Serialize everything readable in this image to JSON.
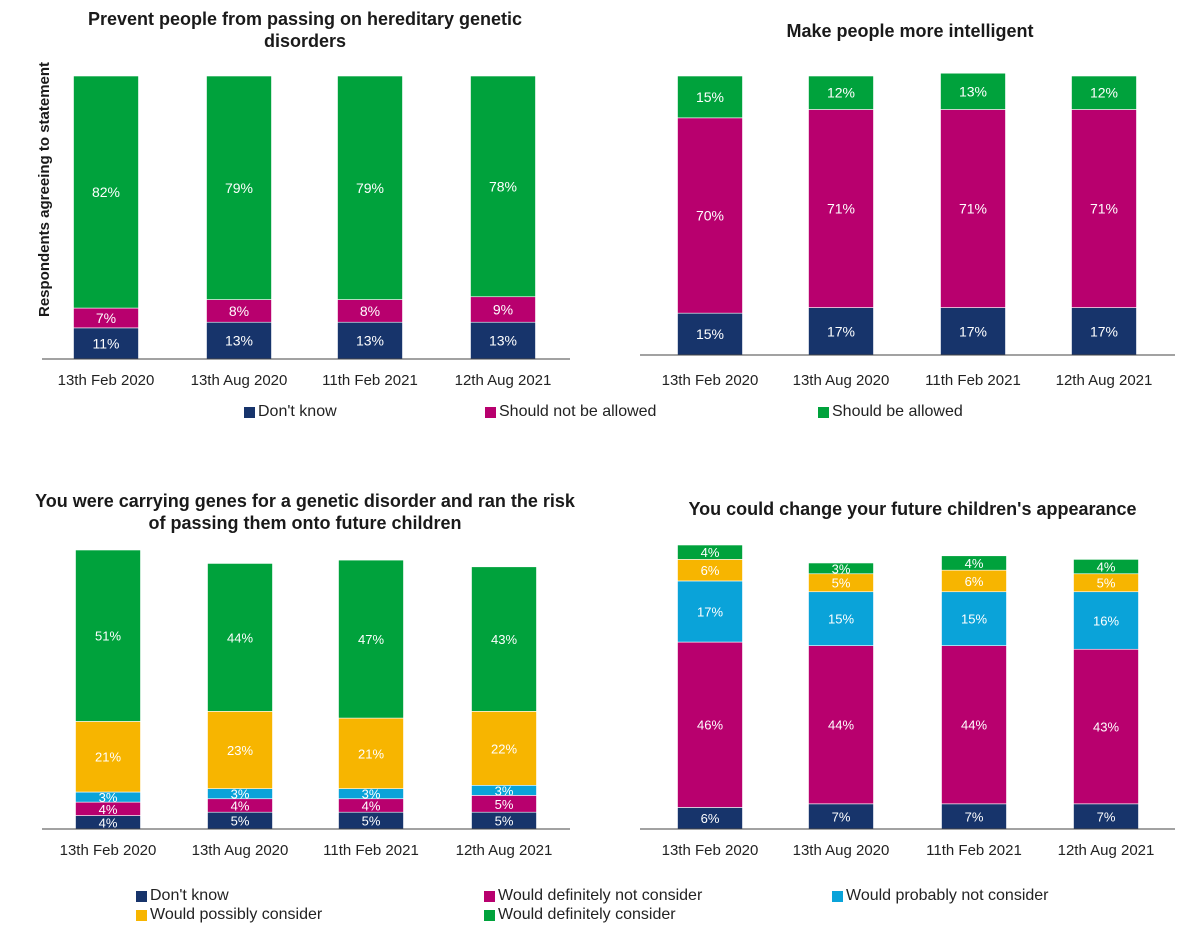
{
  "chart_data": [
    {
      "type": "bar",
      "stacked": true,
      "title": "Prevent people from passing on hereditary genetic disorders",
      "ylabel": "Respondents agreeing to statement",
      "categories": [
        "13th Feb 2020",
        "13th Aug 2020",
        "11th Feb 2021",
        "12th Aug 2021"
      ],
      "series": [
        {
          "name": "Don't know",
          "color": "#17346b",
          "values": [
            11,
            13,
            13,
            13
          ],
          "labels": [
            "11%",
            "13%",
            "13%",
            "13%"
          ]
        },
        {
          "name": "Should not be allowed",
          "color": "#b8006e",
          "values": [
            7,
            8,
            8,
            9
          ],
          "labels": [
            "7%",
            "8%",
            "8%",
            "9%"
          ]
        },
        {
          "name": "Should be allowed",
          "color": "#00a23c",
          "values": [
            82,
            79,
            79,
            78
          ],
          "labels": [
            "82%",
            "79%",
            "79%",
            "78%"
          ]
        }
      ],
      "ylim": [
        0,
        100
      ]
    },
    {
      "type": "bar",
      "stacked": true,
      "title": "Make people more intelligent",
      "categories": [
        "13th Feb 2020",
        "13th Aug 2020",
        "11th Feb 2021",
        "12th Aug 2021"
      ],
      "series": [
        {
          "name": "Don't know",
          "color": "#17346b",
          "values": [
            15,
            17,
            17,
            17
          ],
          "labels": [
            "15%",
            "17%",
            "17%",
            "17%"
          ]
        },
        {
          "name": "Should not be allowed",
          "color": "#b8006e",
          "values": [
            70,
            71,
            71,
            71
          ],
          "labels": [
            "70%",
            "71%",
            "71%",
            "71%"
          ]
        },
        {
          "name": "Should be allowed",
          "color": "#00a23c",
          "values": [
            15,
            12,
            13,
            12
          ],
          "labels": [
            "15%",
            "12%",
            "13%",
            "12%"
          ]
        }
      ],
      "ylim": [
        0,
        100
      ]
    },
    {
      "type": "bar",
      "stacked": true,
      "title": "You were carrying genes for a genetic disorder and ran the risk of passing them onto future children",
      "categories": [
        "13th Feb 2020",
        "13th Aug 2020",
        "11th Feb 2021",
        "12th Aug 2021"
      ],
      "series": [
        {
          "name": "Don't know",
          "color": "#17346b",
          "values": [
            4,
            5,
            5,
            5
          ],
          "labels": [
            "4%",
            "5%",
            "5%",
            "5%"
          ]
        },
        {
          "name": "Would definitely not consider",
          "color": "#b8006e",
          "values": [
            4,
            4,
            4,
            5
          ],
          "labels": [
            "4%",
            "4%",
            "4%",
            "5%"
          ]
        },
        {
          "name": "Would probably not consider",
          "color": "#0aa3d9",
          "values": [
            3,
            3,
            3,
            3
          ],
          "labels": [
            "3%",
            "3%",
            "3%",
            "3%"
          ]
        },
        {
          "name": "Would possibly consider",
          "color": "#f7b500",
          "values": [
            21,
            23,
            21,
            22
          ],
          "labels": [
            "21%",
            "23%",
            "21%",
            "22%"
          ]
        },
        {
          "name": "Would definitely consider",
          "color": "#00a23c",
          "values": [
            51,
            44,
            47,
            43
          ],
          "labels": [
            "51%",
            "44%",
            "47%",
            "43%"
          ]
        }
      ],
      "ylim": [
        0,
        83
      ]
    },
    {
      "type": "bar",
      "stacked": true,
      "title": "You could change your future children's appearance",
      "categories": [
        "13th Feb 2020",
        "13th Aug 2020",
        "11th Feb 2021",
        "12th Aug 2021"
      ],
      "series": [
        {
          "name": "Don't know",
          "color": "#17346b",
          "values": [
            6,
            7,
            7,
            7
          ],
          "labels": [
            "6%",
            "7%",
            "7%",
            "7%"
          ]
        },
        {
          "name": "Would definitely not consider",
          "color": "#b8006e",
          "values": [
            46,
            44,
            44,
            43
          ],
          "labels": [
            "46%",
            "44%",
            "44%",
            "43%"
          ]
        },
        {
          "name": "Would probably not consider",
          "color": "#0aa3d9",
          "values": [
            17,
            15,
            15,
            16
          ],
          "labels": [
            "17%",
            "15%",
            "15%",
            "16%"
          ]
        },
        {
          "name": "Would possibly consider",
          "color": "#f7b500",
          "values": [
            6,
            5,
            6,
            5
          ],
          "labels": [
            "6%",
            "5%",
            "6%",
            "5%"
          ]
        },
        {
          "name": "Would definitely consider",
          "color": "#00a23c",
          "values": [
            4,
            3,
            4,
            4
          ],
          "labels": [
            "4%",
            "3%",
            "4%",
            "4%"
          ]
        }
      ],
      "ylim": [
        0,
        79
      ]
    }
  ],
  "legend_top": {
    "items": [
      {
        "label": "Don't know",
        "color": "#17346b"
      },
      {
        "label": "Should not be allowed",
        "color": "#b8006e"
      },
      {
        "label": "Should be allowed",
        "color": "#00a23c"
      }
    ]
  },
  "legend_bottom": {
    "items": [
      {
        "label": "Don't know",
        "color": "#17346b"
      },
      {
        "label": "Would definitely not consider",
        "color": "#b8006e"
      },
      {
        "label": "Would probably not consider",
        "color": "#0aa3d9"
      },
      {
        "label": "Would possibly consider",
        "color": "#f7b500"
      },
      {
        "label": "Would definitely consider",
        "color": "#00a23c"
      }
    ]
  }
}
